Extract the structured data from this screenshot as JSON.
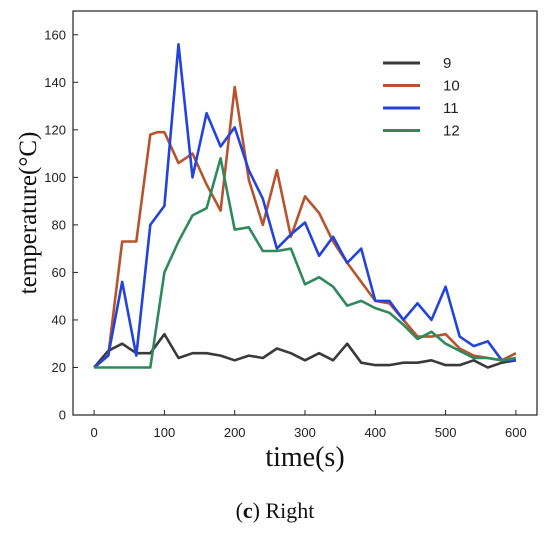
{
  "caption": {
    "label": "c",
    "text": "Right"
  },
  "chart_data": {
    "type": "line",
    "xlabel": "time(s)",
    "ylabel": "temperature(°C)",
    "xlim": [
      -30,
      630
    ],
    "ylim": [
      0,
      170
    ],
    "xticks": [
      0,
      100,
      200,
      300,
      400,
      500,
      600
    ],
    "yticks": [
      0,
      20,
      40,
      60,
      80,
      100,
      120,
      140,
      160
    ],
    "grid": false,
    "legend_position": "top-right",
    "series": [
      {
        "name": "9",
        "color": "#3a3a3a",
        "x": [
          0,
          20,
          40,
          60,
          80,
          100,
          120,
          140,
          160,
          180,
          200,
          220,
          240,
          260,
          280,
          300,
          320,
          340,
          360,
          380,
          400,
          420,
          440,
          460,
          480,
          500,
          520,
          540,
          560,
          580,
          600
        ],
        "y": [
          20,
          27,
          30,
          26,
          26,
          34,
          24,
          26,
          26,
          25,
          23,
          25,
          24,
          28,
          26,
          23,
          26,
          23,
          30,
          22,
          21,
          21,
          22,
          22,
          23,
          21,
          21,
          23,
          20,
          22,
          23
        ]
      },
      {
        "name": "10",
        "color": "#b8532e",
        "x": [
          0,
          20,
          40,
          60,
          80,
          90,
          100,
          120,
          140,
          160,
          180,
          200,
          220,
          240,
          260,
          280,
          300,
          320,
          340,
          360,
          380,
          400,
          420,
          440,
          460,
          480,
          500,
          520,
          540,
          560,
          580,
          600
        ],
        "y": [
          20,
          25,
          73,
          73,
          118,
          119,
          119,
          106,
          110,
          97,
          86,
          138,
          99,
          80,
          103,
          75,
          92,
          85,
          73,
          64,
          56,
          48,
          47,
          40,
          33,
          33,
          34,
          28,
          25,
          24,
          23,
          26
        ]
      },
      {
        "name": "11",
        "color": "#2244dd",
        "x": [
          0,
          20,
          40,
          60,
          80,
          100,
          120,
          140,
          160,
          180,
          200,
          220,
          240,
          260,
          280,
          300,
          320,
          340,
          360,
          380,
          400,
          420,
          440,
          460,
          480,
          500,
          520,
          540,
          560,
          580,
          600
        ],
        "y": [
          20,
          25,
          56,
          25,
          80,
          88,
          156,
          100,
          127,
          113,
          121,
          103,
          91,
          70,
          76,
          81,
          67,
          75,
          64,
          70,
          48,
          48,
          40,
          47,
          40,
          54,
          33,
          29,
          31,
          23,
          23
        ]
      },
      {
        "name": "12",
        "color": "#2e8a5c",
        "x": [
          0,
          20,
          40,
          60,
          80,
          100,
          120,
          140,
          160,
          180,
          200,
          220,
          240,
          260,
          280,
          300,
          320,
          340,
          360,
          380,
          400,
          420,
          440,
          460,
          480,
          500,
          520,
          540,
          560,
          580,
          600
        ],
        "y": [
          20,
          20,
          20,
          20,
          20,
          60,
          73,
          84,
          87,
          108,
          78,
          79,
          69,
          69,
          70,
          55,
          58,
          54,
          46,
          48,
          45,
          43,
          38,
          32,
          35,
          30,
          27,
          24,
          24,
          23,
          24
        ]
      }
    ]
  }
}
